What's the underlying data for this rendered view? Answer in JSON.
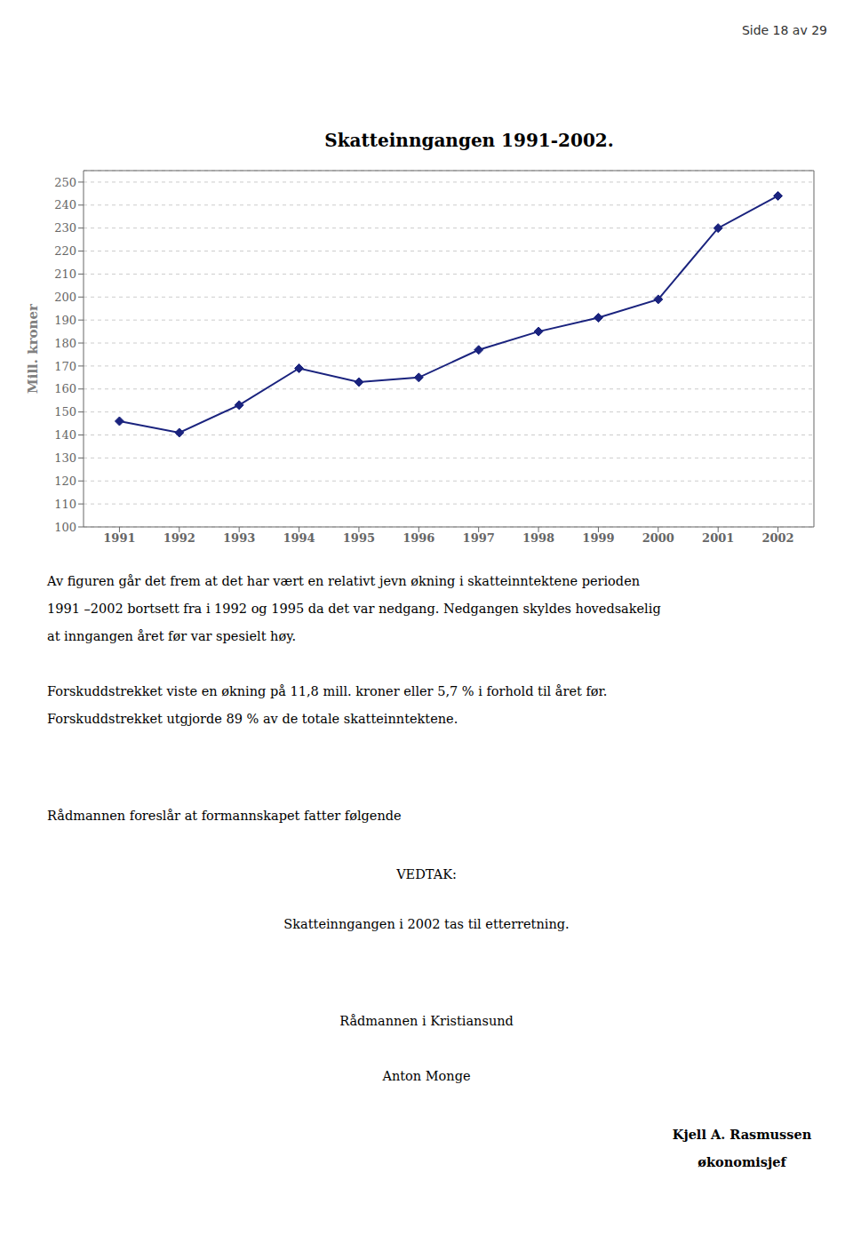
{
  "chart_data": {
    "type": "line",
    "title": "Skatteinngangen 1991-2002.",
    "ylabel": "Mill. kroner",
    "x": [
      1991,
      1992,
      1993,
      1994,
      1995,
      1996,
      1997,
      1998,
      1999,
      2000,
      2001,
      2002
    ],
    "values": [
      146,
      141,
      153,
      169,
      163,
      165,
      177,
      185,
      191,
      199,
      230,
      244
    ],
    "xlim": [
      1990.4,
      2002.6
    ],
    "xticks": [
      1991,
      1992,
      1993,
      1994,
      1995,
      1996,
      1997,
      1998,
      1999,
      2000,
      2001,
      2002
    ],
    "ylim": [
      100,
      255
    ],
    "yticks": [
      100,
      110,
      120,
      130,
      140,
      150,
      160,
      170,
      180,
      190,
      200,
      210,
      220,
      230,
      240,
      250
    ],
    "color": "#1a237e",
    "marker": "diamond",
    "grid": true,
    "annotations": [
      "Side 18 av 29",
      "Av figuren går det frem at det har vært en relativt jevn økning i skatteinntektene perioden",
      "1991 –2002 bortsett fra i 1992 og 1995 da det var nedgang. Nedgangen skyldes hovedsakelig",
      "at inngangen året før var spesielt høy.",
      "Forskuddstrekket viste en økning på 11,8 mill. kroner eller 5,7 % i forhold til året før.",
      "Forskuddstrekket utgjorde 89 % av de totale skatteinntektene.",
      "Rådmannen foreslår at formannskapet fatter følgende",
      "VEDTAK:",
      "Skatteinngangen i 2002 tas til etterretning.",
      "Rådmannen i Kristiansund",
      "Anton Monge",
      "Kjell A. Rasmussen",
      "økonomisjef"
    ]
  }
}
